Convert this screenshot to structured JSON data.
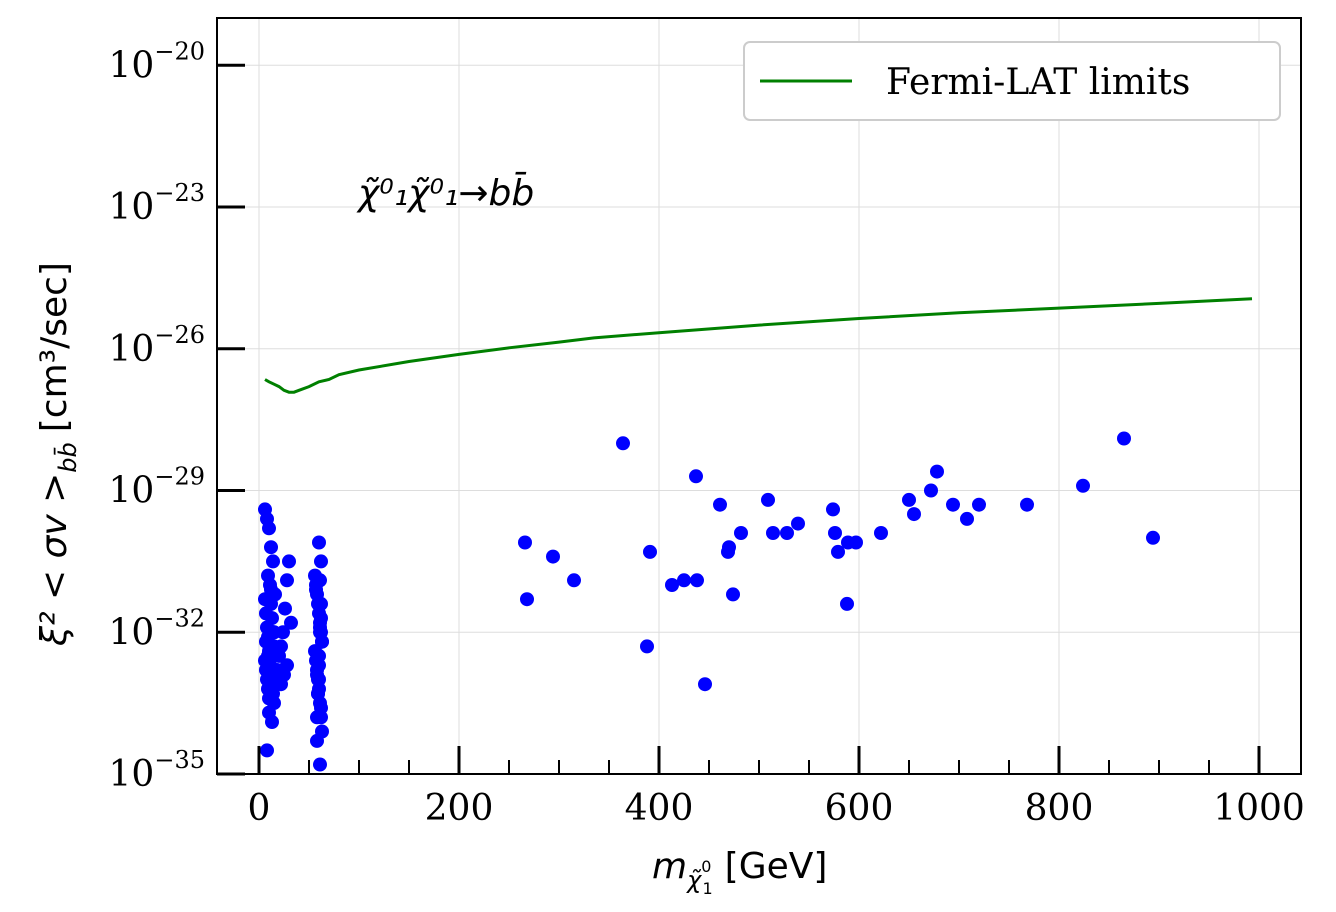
{
  "chart_data": {
    "type": "scatter",
    "xlabel": "m",
    "xlabel_sub": "χ̃",
    "xlabel_sub_sup": "0",
    "xlabel_sub_sub": "1",
    "xlabel_unit": "[GeV]",
    "ylabel_main": "ξ² < σv >",
    "ylabel_sub": "bb̄",
    "ylabel_unit": "[cm³/sec]",
    "annotation": "χ̃⁰₁χ̃⁰₁→bb̄",
    "xlim": [
      -42,
      1042
    ],
    "ylim_log10": [
      -35,
      -19
    ],
    "y_scale": "log",
    "grid": true,
    "legend_position": "top-right",
    "x_ticks": [
      0,
      200,
      400,
      600,
      800,
      1000
    ],
    "y_ticks": [
      {
        "base": "10",
        "exp": "−20",
        "value": -20
      },
      {
        "base": "10",
        "exp": "−23",
        "value": -23
      },
      {
        "base": "10",
        "exp": "−26",
        "value": -26
      },
      {
        "base": "10",
        "exp": "−29",
        "value": -29
      },
      {
        "base": "10",
        "exp": "−32",
        "value": -32
      },
      {
        "base": "10",
        "exp": "−35",
        "value": -35
      }
    ],
    "series": [
      {
        "name": "Fermi-LAT limits",
        "kind": "line",
        "color": "#008000",
        "x": [
          6,
          10,
          15,
          20,
          25,
          30,
          35,
          40,
          50,
          60,
          70,
          80,
          100,
          150,
          200,
          250,
          300,
          335,
          400,
          500,
          600,
          700,
          800,
          900,
          993
        ],
        "log10_y": [
          -26.65,
          -26.7,
          -26.75,
          -26.8,
          -26.88,
          -26.92,
          -26.92,
          -26.88,
          -26.8,
          -26.7,
          -26.65,
          -26.55,
          -26.45,
          -26.27,
          -26.12,
          -25.98,
          -25.86,
          -25.77,
          -25.66,
          -25.5,
          -25.36,
          -25.24,
          -25.14,
          -25.04,
          -24.94
        ]
      },
      {
        "name": "",
        "kind": "scatter",
        "color": "#0000ff",
        "x": [
          6,
          7,
          8,
          9,
          10,
          11,
          12,
          13,
          14,
          15,
          6,
          7,
          8,
          9,
          10,
          11,
          12,
          13,
          14,
          15,
          6,
          8,
          10,
          12,
          14,
          16,
          7,
          9,
          11,
          13,
          16,
          18,
          20,
          22,
          24,
          26,
          28,
          30,
          32,
          28,
          25,
          22,
          9,
          12,
          15,
          10,
          13,
          8,
          11,
          15,
          56,
          57,
          58,
          59,
          60,
          61,
          62,
          63,
          56,
          57,
          58,
          59,
          60,
          61,
          62,
          63,
          58,
          59,
          60,
          61,
          62,
          63,
          60,
          61,
          62,
          57,
          58,
          59,
          60,
          61,
          62,
          60,
          61,
          58,
          62,
          266,
          268,
          294,
          315,
          364,
          388,
          391,
          413,
          425,
          438,
          437,
          446,
          461,
          469,
          470,
          474,
          482,
          509,
          514,
          528,
          539,
          574,
          576,
          579,
          588,
          589,
          597,
          622,
          650,
          655,
          672,
          678,
          694,
          708,
          720,
          768,
          824,
          865,
          894
        ],
        "log10_y": [
          -31.3,
          -31.6,
          -31.9,
          -32.1,
          -32.4,
          -31.0,
          -31.4,
          -31.7,
          -32.0,
          -32.3,
          -32.6,
          -32.8,
          -33.0,
          -33.2,
          -33.4,
          -32.7,
          -32.9,
          -33.1,
          -33.3,
          -33.5,
          -29.4,
          -29.6,
          -29.8,
          -30.2,
          -30.5,
          -31.2,
          -32.2,
          -32.5,
          -32.8,
          -33.0,
          -33.1,
          -32.8,
          -32.5,
          -32.3,
          -32.0,
          -31.5,
          -30.9,
          -30.5,
          -31.8,
          -32.7,
          -32.9,
          -33.1,
          -30.8,
          -31.1,
          -32.0,
          -33.7,
          -33.9,
          -34.5,
          -33.0,
          -32.0,
          -30.8,
          -31.0,
          -31.2,
          -31.4,
          -31.6,
          -31.8,
          -32.0,
          -32.2,
          -32.4,
          -32.6,
          -32.8,
          -33.0,
          -33.2,
          -33.5,
          -33.8,
          -34.1,
          -34.3,
          -33.3,
          -32.5,
          -31.9,
          -31.7,
          -32.2,
          -32.7,
          -32.0,
          -31.4,
          -31.1,
          -32.9,
          -33.3,
          -33.0,
          -30.9,
          -30.5,
          -30.1,
          -34.8,
          -33.8,
          -33.6,
          -30.1,
          -31.3,
          -30.4,
          -30.9,
          -28.0,
          -32.3,
          -30.3,
          -31.0,
          -30.9,
          -30.9,
          -28.7,
          -33.1,
          -29.3,
          -30.3,
          -30.2,
          -31.2,
          -29.9,
          -29.2,
          -29.9,
          -29.9,
          -29.7,
          -29.4,
          -29.9,
          -30.3,
          -31.4,
          -30.1,
          -30.1,
          -29.9,
          -29.2,
          -29.5,
          -29.0,
          -28.6,
          -29.3,
          -29.6,
          -29.3,
          -29.3,
          -28.9,
          -27.9,
          -30.0
        ]
      }
    ]
  }
}
